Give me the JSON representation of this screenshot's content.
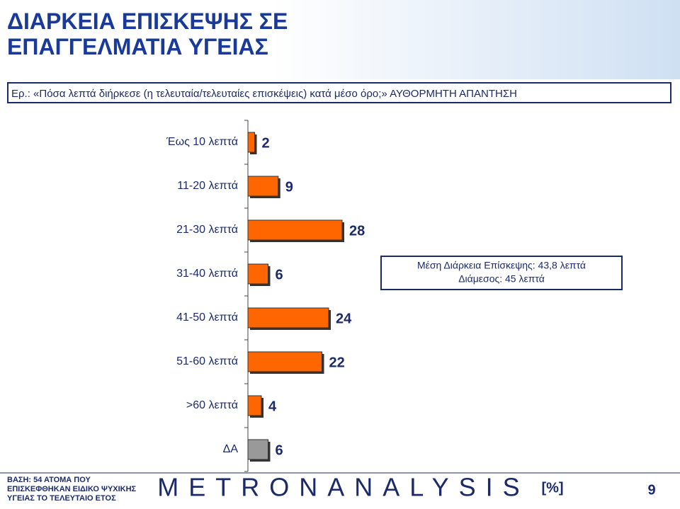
{
  "header": {
    "title": "ΔΙΑΡΚΕΙΑ ΕΠΙΣΚΕΨΗΣ ΣΕ ΕΠΑΓΓΕΛΜΑΤΙΑ ΥΓΕΙΑΣ",
    "question": "Ερ.: «Πόσα λεπτά διήρκεσε (η τελευταία/τελευταίες επισκέψεις) κατά μέσο όρο;» ΑΥΘΟΡΜΗΤΗ ΑΠΑΝΤΗΣΗ"
  },
  "chart_data": {
    "type": "hbar",
    "categories": [
      "Έως 10 λεπτά",
      "11-20 λεπτά",
      "21-30 λεπτά",
      "31-40 λεπτά",
      "41-50 λεπτά",
      "51-60 λεπτά",
      ">60 λεπτά",
      "ΔΑ"
    ],
    "values": [
      2,
      9,
      28,
      6,
      24,
      22,
      4,
      6
    ],
    "colors": [
      "#ff6600",
      "#ff6600",
      "#ff6600",
      "#ff6600",
      "#ff6600",
      "#ff6600",
      "#ff6600",
      "#999999"
    ],
    "annotation": [
      "Μέση Διάρκεια Επίσκεψης: 43,8 λεπτά",
      "Διάμεσος: 45 λεπτά"
    ]
  },
  "footer": {
    "base": [
      "ΒΑΣΗ: 54 ΑΤΟΜΑ ΠΟΥ",
      "ΕΠΙΣΚΕΦΘΗΚΑΝ ΕΙΔΙΚΟ ΨΥΧΙΚΗΣ",
      "ΥΓΕΙΑΣ ΤΟ ΤΕΛΕΥΤΑΙΟ ΕΤΟΣ"
    ],
    "logo": "METRONANALYSIS",
    "unit": "[%]",
    "page": "9"
  }
}
